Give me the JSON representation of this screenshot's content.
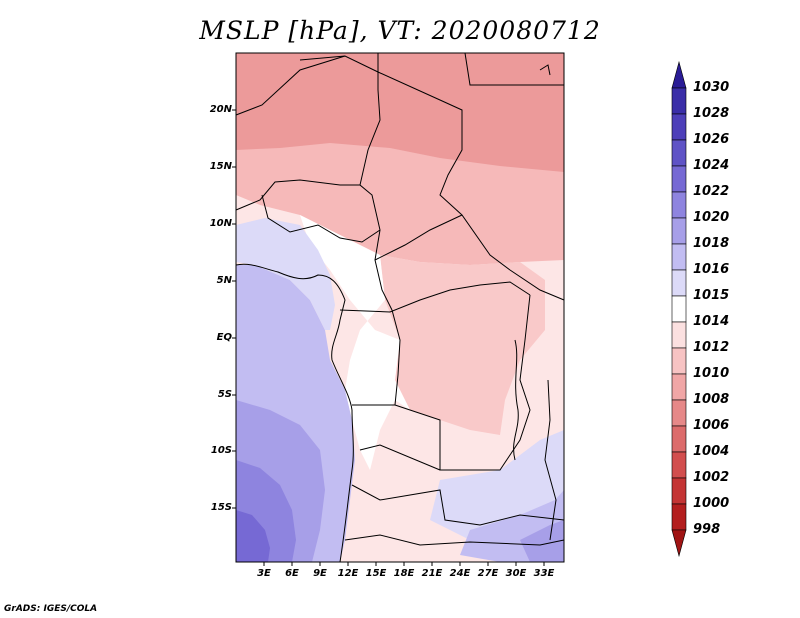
{
  "title": "MSLP [hPa], VT: 2020080712",
  "credit": "GrADS: IGES/COLA",
  "lat_labels": [
    "20N",
    "15N",
    "10N",
    "5N",
    "EQ",
    "5S",
    "10S",
    "15S"
  ],
  "lon_labels": [
    "3E",
    "6E",
    "9E",
    "12E",
    "15E",
    "18E",
    "21E",
    "24E",
    "27E",
    "30E",
    "33E"
  ],
  "colorbar": {
    "levels": [
      "1030",
      "1028",
      "1026",
      "1024",
      "1022",
      "1020",
      "1018",
      "1016",
      "1015",
      "1014",
      "1012",
      "1010",
      "1008",
      "1006",
      "1004",
      "1002",
      "1000",
      "998"
    ],
    "colors": [
      "#2a1c96",
      "#3a2ea8",
      "#4d3fb9",
      "#5f53c6",
      "#7669d4",
      "#8e84df",
      "#a79fe8",
      "#c2bdf2",
      "#dcdaf8",
      "#ffffff",
      "#fbe0e0",
      "#f7c3c3",
      "#f0a6a6",
      "#e68888",
      "#dc6b6b",
      "#d24e4e",
      "#c43434",
      "#b31e1e",
      "#a01414"
    ]
  },
  "fields": {
    "sahara": "#ec9a9a",
    "sahel": "#f6b9b9",
    "congo": "#f9c9c9",
    "transition": "#fde6e6",
    "neutral": "#ffffff",
    "atlantic": "#c2bdf2",
    "atlantic_south": "#a79fe8",
    "high": "#8e84df",
    "high_core": "#7669d4",
    "southeast": "#dcdaf8",
    "boundary": "#000000"
  }
}
